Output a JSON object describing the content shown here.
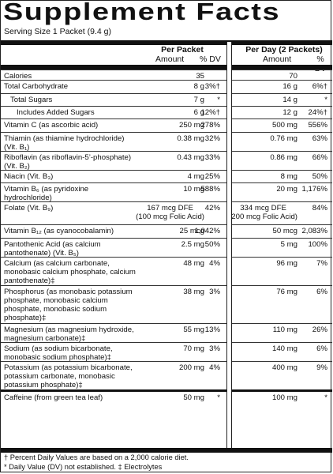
{
  "panel": {
    "title": "Supplement Facts",
    "serving": "Serving Size 1 Packet (9.4 g)",
    "col1_header_line1": "Per Packet",
    "col1_header_amount": "Amount",
    "col1_header_dv": "% DV",
    "col2_header_line1": "Per Day (2 Packets)",
    "col2_header_amount": "Amount",
    "col2_header_dv": "% DV"
  },
  "rows": [
    {
      "label": "Calories",
      "a1": "35",
      "d1": "",
      "a2": "70",
      "d2": "",
      "indent": 0
    },
    {
      "label": "Total Carbohydrate",
      "a1": "8 g",
      "d1": "3%†",
      "a2": "16 g",
      "d2": "6%†",
      "indent": 0
    },
    {
      "label": "Total Sugars",
      "a1": "7 g",
      "d1": "*",
      "a2": "14 g",
      "d2": "*",
      "indent": 1
    },
    {
      "label": "Includes Added Sugars",
      "a1": "6 g",
      "d1": "12%†",
      "a2": "12 g",
      "d2": "24%†",
      "indent": 2
    },
    {
      "label": "Vitamin C (as ascorbic acid)",
      "a1": "250 mg",
      "d1": "278%",
      "a2": "500 mg",
      "d2": "556%",
      "indent": 0
    },
    {
      "label": "Thiamin (as thiamine hydrochloride) (Vit. B₁)",
      "a1": "0.38 mg",
      "d1": "32%",
      "a2": "0.76 mg",
      "d2": "63%",
      "indent": 0
    },
    {
      "label": "Riboflavin (as riboflavin-5’-phosphate) (Vit. B₂)",
      "a1": "0.43 mg",
      "d1": "33%",
      "a2": "0.86 mg",
      "d2": "66%",
      "indent": 0
    },
    {
      "label": "Niacin (Vit. B₃)",
      "a1": "4 mg",
      "d1": "25%",
      "a2": "8 mg",
      "d2": "50%",
      "indent": 0
    },
    {
      "label": "Vitamin B₆ (as pyridoxine hydrochloride)",
      "a1": "10 mg",
      "d1": "588%",
      "a2": "20 mg",
      "d2": "1,176%",
      "indent": 0
    },
    {
      "label": "Folate (Vit. B₉)",
      "a1": "167 mcg DFE\n(100 mcg Folic Acid)",
      "d1": "42%",
      "a2": "334 mcg DFE\n(200 mcg Folic Acid)",
      "d2": "84%",
      "indent": 0
    },
    {
      "label": "Vitamin B₁₂ (as cyanocobalamin)",
      "a1": "25 mcg",
      "d1": "1,042%",
      "a2": "50 mcg",
      "d2": "2,083%",
      "indent": 0
    },
    {
      "label": "Pantothenic Acid (as calcium pantothenate) (Vit. B₅)",
      "a1": "2.5 mg",
      "d1": "50%",
      "a2": "5 mg",
      "d2": "100%",
      "indent": 0
    },
    {
      "label": "Calcium (as calcium carbonate, monobasic calcium phosphate, calcium pantothenate)‡",
      "a1": "48 mg",
      "d1": "4%",
      "a2": "96 mg",
      "d2": "7%",
      "indent": 0
    },
    {
      "label": "Phosphorus (as monobasic potassium phosphate, monobasic calcium phosphate, monobasic sodium phosphate)‡",
      "a1": "38 mg",
      "d1": "3%",
      "a2": "76 mg",
      "d2": "6%",
      "indent": 0
    },
    {
      "label": "Magnesium (as magnesium hydroxide, magnesium carbonate)‡",
      "a1": "55 mg",
      "d1": "13%",
      "a2": "110 mg",
      "d2": "26%",
      "indent": 0
    },
    {
      "label": "Sodium (as sodium bicarbonate, monobasic sodium phosphate)‡",
      "a1": "70 mg",
      "d1": "3%",
      "a2": "140 mg",
      "d2": "6%",
      "indent": 0
    },
    {
      "label": "Potassium (as potassium bicarbonate, potassium carbonate, monobasic potassium phosphate)‡",
      "a1": "200 mg",
      "d1": "4%",
      "a2": "400 mg",
      "d2": "9%",
      "indent": 0
    },
    {
      "label": "Caffeine (from green tea leaf)",
      "a1": "50 mg",
      "d1": "*",
      "a2": "100 mg",
      "d2": "*",
      "indent": 0
    }
  ],
  "footnotes": {
    "line1": "† Percent Daily Values are based on a 2,000 calorie diet.",
    "line2": "* Daily Value (DV) not established.    ‡ Electrolytes"
  }
}
